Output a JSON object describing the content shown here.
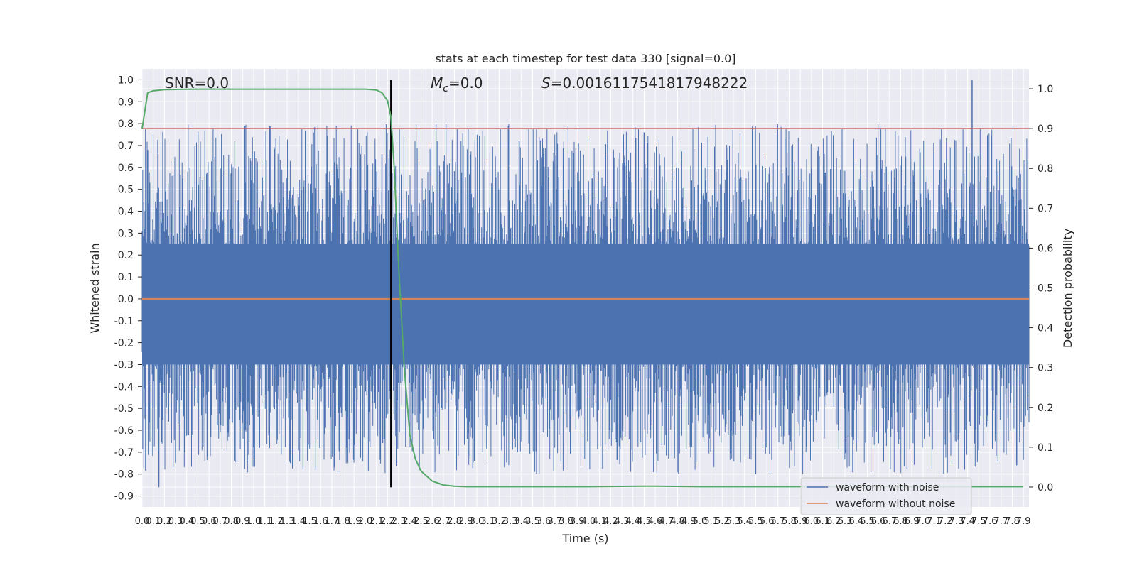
{
  "chart_data": {
    "type": "line",
    "title": "stats at each timestep for test data 330 [signal=0.0]",
    "xlabel": "Time (s)",
    "ylabel_left": "Whitened strain",
    "ylabel_right": "Detection probability",
    "xlim": [
      0.0,
      7.95
    ],
    "ylim_left": [
      -0.95,
      1.05
    ],
    "ylim_right": [
      -0.05,
      1.05
    ],
    "grid": true,
    "background": "#eaeaf2",
    "annotations": {
      "snr": "SNR=0.0",
      "mc_symbol": "M",
      "mc_sub": "c",
      "mc_value": "=0.0",
      "s_symbol": "S",
      "s_value": "=0.0016117541817948222"
    },
    "x_tick_labels": [
      "0.0",
      "0.1",
      "0.2",
      "0.3",
      "0.4",
      "0.5",
      "0.6",
      "0.7",
      "0.8",
      "0.9",
      "1.0",
      "1.1",
      "1.2",
      "1.3",
      "1.4",
      "1.5",
      "1.6",
      "1.7",
      "1.8",
      "1.9",
      "2.0",
      "2.1",
      "2.2",
      "2.3",
      "2.4",
      "2.5",
      "2.6",
      "2.7",
      "2.8",
      "2.9",
      "3.0",
      "3.1",
      "3.2",
      "3.3",
      "3.4",
      "3.5",
      "3.6",
      "3.7",
      "3.8",
      "3.9",
      "4.0",
      "4.1",
      "4.2",
      "4.3",
      "4.4",
      "4.5",
      "4.6",
      "4.7",
      "4.8",
      "4.9",
      "5.0",
      "5.1",
      "5.2",
      "5.3",
      "5.4",
      "5.5",
      "5.6",
      "5.7",
      "5.8",
      "5.9",
      "6.0",
      "6.1",
      "6.2",
      "6.3",
      "6.4",
      "6.5",
      "6.6",
      "6.7",
      "6.8",
      "6.9",
      "7.0",
      "7.1",
      "7.2",
      "7.3",
      "7.4",
      "7.5",
      "7.6",
      "7.7",
      "7.8",
      "7.9"
    ],
    "y_left_tick_labels": [
      "1.0",
      "0.9",
      "0.8",
      "0.7",
      "0.6",
      "0.5",
      "0.4",
      "0.3",
      "0.2",
      "0.1",
      "0.0",
      "-0.1",
      "-0.2",
      "-0.3",
      "-0.4",
      "-0.5",
      "-0.6",
      "-0.7",
      "-0.8",
      "-0.9"
    ],
    "y_right_tick_labels": [
      "1.0",
      "0.9",
      "0.8",
      "0.7",
      "0.6",
      "0.5",
      "0.4",
      "0.3",
      "0.2",
      "0.1",
      "0.0"
    ],
    "series": [
      {
        "name": "waveform with noise",
        "color": "#4c72b0",
        "axis": "left",
        "envelope_typical": [
          -0.45,
          0.45
        ],
        "peaks": [
          [
            0.05,
            0.68
          ],
          [
            0.15,
            -0.86
          ],
          [
            0.92,
            0.79
          ],
          [
            1.33,
            -0.75
          ],
          [
            2.15,
            0.66
          ],
          [
            3.38,
            0.72
          ],
          [
            4.5,
            0.76
          ],
          [
            5.5,
            -0.8
          ],
          [
            7.44,
            1.0
          ],
          [
            7.84,
            -0.76
          ]
        ]
      },
      {
        "name": "waveform without noise",
        "color": "#dd8452",
        "axis": "left",
        "x": [
          0.0,
          7.95
        ],
        "y": [
          0.0,
          0.0
        ]
      },
      {
        "name": "",
        "color": "#55a868",
        "axis": "right",
        "x": [
          0.0,
          0.05,
          0.1,
          0.2,
          0.5,
          1.0,
          1.5,
          2.0,
          2.1,
          2.15,
          2.2,
          2.23,
          2.26,
          2.3,
          2.35,
          2.4,
          2.45,
          2.5,
          2.6,
          2.7,
          2.8,
          2.9,
          3.0,
          3.5,
          4.0,
          4.5,
          4.6,
          5.0,
          5.5,
          6.0,
          7.0,
          7.9
        ],
        "y": [
          0.9,
          0.99,
          0.995,
          0.998,
          0.999,
          0.999,
          0.999,
          0.999,
          0.997,
          0.99,
          0.97,
          0.93,
          0.8,
          0.55,
          0.3,
          0.13,
          0.07,
          0.04,
          0.015,
          0.005,
          0.002,
          0.001,
          0.001,
          0.001,
          0.001,
          0.002,
          0.002,
          0.001,
          0.001,
          0.001,
          0.001,
          0.001
        ]
      }
    ],
    "threshold_line": {
      "color": "#c44e52",
      "axis": "right",
      "value": 0.9
    },
    "vertical_marker": {
      "color": "#000000",
      "x": 2.23,
      "y_range": [
        -0.86,
        1.0
      ]
    },
    "legend": {
      "placement": "lower-right",
      "entries": [
        {
          "label": "waveform with noise",
          "color": "#4c72b0"
        },
        {
          "label": "waveform without noise",
          "color": "#dd8452"
        }
      ]
    }
  }
}
